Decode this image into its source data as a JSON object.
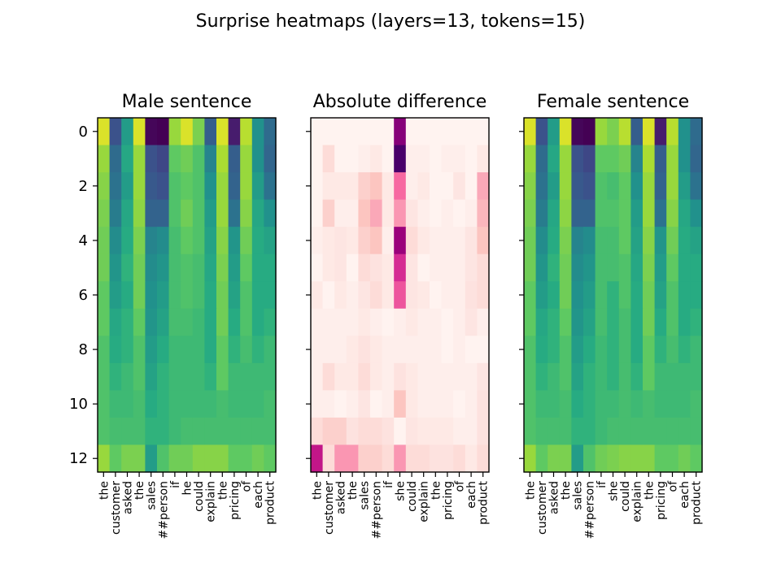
{
  "title": "Surprise heatmaps (layers=13, tokens=15)",
  "chart_data": [
    {
      "type": "heatmap",
      "title": "Male sentence",
      "colormap": "viridis",
      "x_tokens": [
        "the",
        "customer",
        "asked",
        "the",
        "sales",
        "##person",
        "if",
        "he",
        "could",
        "explain",
        "the",
        "pricing",
        "of",
        "each",
        "product"
      ],
      "y_ticks": [
        0,
        2,
        4,
        6,
        8,
        10,
        12
      ],
      "show_y_tick_labels": true,
      "values": [
        [
          0.95,
          0.25,
          0.55,
          0.95,
          0.02,
          0.0,
          0.85,
          0.95,
          0.8,
          0.3,
          0.95,
          0.1,
          0.9,
          0.5,
          0.35
        ],
        [
          0.85,
          0.35,
          0.6,
          0.85,
          0.25,
          0.22,
          0.75,
          0.78,
          0.72,
          0.45,
          0.88,
          0.3,
          0.85,
          0.5,
          0.33
        ],
        [
          0.82,
          0.38,
          0.55,
          0.85,
          0.28,
          0.25,
          0.72,
          0.75,
          0.72,
          0.5,
          0.85,
          0.32,
          0.85,
          0.55,
          0.38
        ],
        [
          0.8,
          0.42,
          0.6,
          0.83,
          0.32,
          0.32,
          0.72,
          0.78,
          0.72,
          0.55,
          0.85,
          0.38,
          0.82,
          0.6,
          0.5
        ],
        [
          0.78,
          0.48,
          0.62,
          0.8,
          0.45,
          0.48,
          0.7,
          0.75,
          0.72,
          0.58,
          0.82,
          0.52,
          0.78,
          0.62,
          0.58
        ],
        [
          0.78,
          0.52,
          0.65,
          0.78,
          0.48,
          0.52,
          0.7,
          0.72,
          0.7,
          0.6,
          0.8,
          0.55,
          0.75,
          0.62,
          0.62
        ],
        [
          0.75,
          0.55,
          0.62,
          0.78,
          0.5,
          0.55,
          0.7,
          0.72,
          0.7,
          0.62,
          0.78,
          0.58,
          0.72,
          0.62,
          0.62
        ],
        [
          0.75,
          0.6,
          0.65,
          0.75,
          0.52,
          0.58,
          0.7,
          0.7,
          0.68,
          0.62,
          0.78,
          0.62,
          0.72,
          0.62,
          0.65
        ],
        [
          0.72,
          0.62,
          0.65,
          0.72,
          0.55,
          0.62,
          0.68,
          0.68,
          0.68,
          0.62,
          0.75,
          0.65,
          0.7,
          0.65,
          0.68
        ],
        [
          0.72,
          0.65,
          0.68,
          0.72,
          0.58,
          0.65,
          0.68,
          0.68,
          0.68,
          0.65,
          0.75,
          0.68,
          0.68,
          0.68,
          0.68
        ],
        [
          0.72,
          0.68,
          0.68,
          0.7,
          0.62,
          0.65,
          0.68,
          0.68,
          0.68,
          0.68,
          0.7,
          0.68,
          0.68,
          0.68,
          0.7
        ],
        [
          0.72,
          0.7,
          0.7,
          0.7,
          0.65,
          0.65,
          0.68,
          0.7,
          0.7,
          0.7,
          0.7,
          0.7,
          0.7,
          0.7,
          0.7
        ],
        [
          0.85,
          0.75,
          0.8,
          0.8,
          0.55,
          0.72,
          0.78,
          0.78,
          0.82,
          0.82,
          0.82,
          0.75,
          0.75,
          0.78,
          0.75
        ]
      ]
    },
    {
      "type": "heatmap",
      "title": "Absolute difference",
      "colormap": "RdPu",
      "x_tokens": [
        "the",
        "customer",
        "asked",
        "the",
        "sales",
        "##person",
        "if",
        "she",
        "could",
        "explain",
        "the",
        "pricing",
        "of",
        "each",
        "product"
      ],
      "y_ticks": [
        0,
        2,
        4,
        6,
        8,
        10,
        12
      ],
      "show_y_tick_labels": false,
      "values": [
        [
          0.02,
          0.02,
          0.02,
          0.02,
          0.02,
          0.02,
          0.02,
          0.85,
          0.02,
          0.02,
          0.02,
          0.02,
          0.02,
          0.02,
          0.02
        ],
        [
          0.02,
          0.15,
          0.02,
          0.02,
          0.05,
          0.08,
          0.02,
          1.0,
          0.05,
          0.05,
          0.02,
          0.05,
          0.05,
          0.02,
          0.08
        ],
        [
          0.02,
          0.08,
          0.08,
          0.08,
          0.2,
          0.25,
          0.08,
          0.5,
          0.05,
          0.08,
          0.02,
          0.02,
          0.1,
          0.02,
          0.35
        ],
        [
          0.02,
          0.2,
          0.05,
          0.05,
          0.25,
          0.35,
          0.08,
          0.4,
          0.1,
          0.05,
          0.02,
          0.05,
          0.02,
          0.05,
          0.3
        ],
        [
          0.05,
          0.08,
          0.1,
          0.08,
          0.2,
          0.25,
          0.05,
          0.8,
          0.15,
          0.08,
          0.05,
          0.05,
          0.05,
          0.1,
          0.25
        ],
        [
          0.02,
          0.08,
          0.1,
          0.02,
          0.15,
          0.12,
          0.08,
          0.65,
          0.1,
          0.02,
          0.05,
          0.05,
          0.05,
          0.1,
          0.15
        ],
        [
          0.08,
          0.02,
          0.08,
          0.05,
          0.1,
          0.15,
          0.08,
          0.55,
          0.1,
          0.08,
          0.02,
          0.05,
          0.05,
          0.12,
          0.15
        ],
        [
          0.05,
          0.05,
          0.05,
          0.05,
          0.08,
          0.05,
          0.02,
          0.05,
          0.08,
          0.05,
          0.05,
          0.02,
          0.05,
          0.1,
          0.05
        ],
        [
          0.05,
          0.05,
          0.05,
          0.08,
          0.12,
          0.08,
          0.05,
          0.05,
          0.05,
          0.05,
          0.05,
          0.02,
          0.05,
          0.02,
          0.02
        ],
        [
          0.05,
          0.15,
          0.08,
          0.08,
          0.15,
          0.08,
          0.05,
          0.12,
          0.08,
          0.05,
          0.05,
          0.05,
          0.05,
          0.05,
          0.1
        ],
        [
          0.05,
          0.05,
          0.02,
          0.05,
          0.1,
          0.02,
          0.05,
          0.25,
          0.08,
          0.05,
          0.05,
          0.05,
          0.02,
          0.05,
          0.12
        ],
        [
          0.15,
          0.2,
          0.2,
          0.12,
          0.15,
          0.15,
          0.12,
          0.02,
          0.1,
          0.08,
          0.08,
          0.08,
          0.05,
          0.05,
          0.12
        ],
        [
          0.7,
          0.15,
          0.4,
          0.4,
          0.2,
          0.2,
          0.15,
          0.4,
          0.15,
          0.15,
          0.12,
          0.12,
          0.15,
          0.08,
          0.15
        ]
      ]
    },
    {
      "type": "heatmap",
      "title": "Female sentence",
      "colormap": "viridis",
      "x_tokens": [
        "the",
        "customer",
        "asked",
        "the",
        "sales",
        "##person",
        "if",
        "she",
        "could",
        "explain",
        "the",
        "pricing",
        "of",
        "each",
        "product"
      ],
      "y_ticks": [
        0,
        2,
        4,
        6,
        8,
        10,
        12
      ],
      "show_y_tick_labels": false,
      "values": [
        [
          0.95,
          0.25,
          0.55,
          0.95,
          0.02,
          0.0,
          0.85,
          0.8,
          0.9,
          0.3,
          0.95,
          0.1,
          0.9,
          0.5,
          0.35
        ],
        [
          0.85,
          0.35,
          0.6,
          0.85,
          0.25,
          0.22,
          0.75,
          0.75,
          0.78,
          0.45,
          0.88,
          0.3,
          0.85,
          0.5,
          0.33
        ],
        [
          0.82,
          0.38,
          0.55,
          0.85,
          0.28,
          0.25,
          0.72,
          0.7,
          0.75,
          0.5,
          0.85,
          0.32,
          0.85,
          0.55,
          0.38
        ],
        [
          0.8,
          0.42,
          0.6,
          0.83,
          0.32,
          0.32,
          0.72,
          0.72,
          0.75,
          0.55,
          0.85,
          0.38,
          0.82,
          0.6,
          0.5
        ],
        [
          0.78,
          0.48,
          0.62,
          0.8,
          0.45,
          0.48,
          0.7,
          0.7,
          0.75,
          0.58,
          0.82,
          0.52,
          0.78,
          0.62,
          0.58
        ],
        [
          0.78,
          0.52,
          0.65,
          0.78,
          0.48,
          0.52,
          0.7,
          0.7,
          0.72,
          0.6,
          0.8,
          0.55,
          0.75,
          0.62,
          0.62
        ],
        [
          0.75,
          0.55,
          0.62,
          0.78,
          0.5,
          0.55,
          0.7,
          0.65,
          0.72,
          0.62,
          0.78,
          0.58,
          0.72,
          0.62,
          0.62
        ],
        [
          0.75,
          0.6,
          0.65,
          0.75,
          0.52,
          0.58,
          0.7,
          0.65,
          0.7,
          0.62,
          0.78,
          0.62,
          0.72,
          0.62,
          0.65
        ],
        [
          0.72,
          0.62,
          0.65,
          0.72,
          0.55,
          0.62,
          0.68,
          0.65,
          0.7,
          0.62,
          0.75,
          0.65,
          0.7,
          0.65,
          0.68
        ],
        [
          0.72,
          0.65,
          0.68,
          0.72,
          0.58,
          0.65,
          0.68,
          0.65,
          0.7,
          0.65,
          0.75,
          0.68,
          0.68,
          0.68,
          0.68
        ],
        [
          0.72,
          0.68,
          0.68,
          0.7,
          0.62,
          0.65,
          0.68,
          0.68,
          0.7,
          0.68,
          0.7,
          0.68,
          0.68,
          0.68,
          0.7
        ],
        [
          0.72,
          0.7,
          0.7,
          0.7,
          0.65,
          0.65,
          0.68,
          0.7,
          0.7,
          0.7,
          0.7,
          0.7,
          0.7,
          0.7,
          0.7
        ],
        [
          0.85,
          0.75,
          0.8,
          0.8,
          0.55,
          0.72,
          0.78,
          0.8,
          0.82,
          0.82,
          0.82,
          0.75,
          0.75,
          0.78,
          0.75
        ]
      ]
    }
  ]
}
